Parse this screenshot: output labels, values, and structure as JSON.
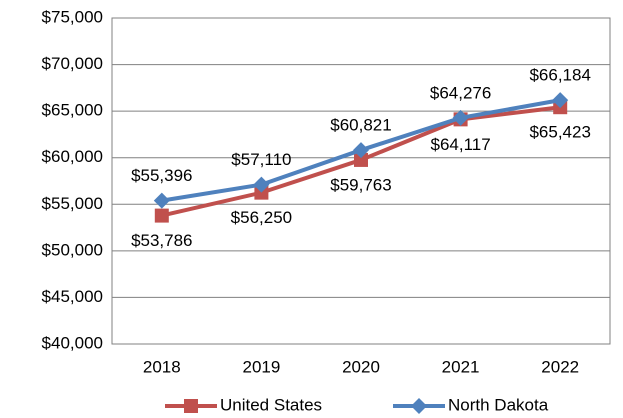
{
  "chart_data": {
    "type": "line",
    "categories": [
      "2018",
      "2019",
      "2020",
      "2021",
      "2022"
    ],
    "series": [
      {
        "name": "United States",
        "color": "#c0504d",
        "values": [
          53786,
          56250,
          59763,
          64117,
          65423
        ],
        "value_labels": [
          "$53,786",
          "$56,250",
          "$59,763",
          "$64,117",
          "$65,423"
        ]
      },
      {
        "name": "North Dakota",
        "color": "#4f81bd",
        "values": [
          55396,
          57110,
          60821,
          64276,
          66184
        ],
        "value_labels": [
          "$55,396",
          "$57,110",
          "$60,821",
          "$64,276",
          "$66,184"
        ]
      }
    ],
    "ylim": [
      40000,
      75000
    ],
    "yticks": [
      {
        "value": 40000,
        "label": "$40,000"
      },
      {
        "value": 45000,
        "label": "$45,000"
      },
      {
        "value": 50000,
        "label": "$50,000"
      },
      {
        "value": 55000,
        "label": "$55,000"
      },
      {
        "value": 60000,
        "label": "$60,000"
      },
      {
        "value": 65000,
        "label": "$65,000"
      },
      {
        "value": 70000,
        "label": "$70,000"
      },
      {
        "value": 75000,
        "label": "$75,000"
      }
    ],
    "grid": true,
    "legend": "bottom"
  }
}
